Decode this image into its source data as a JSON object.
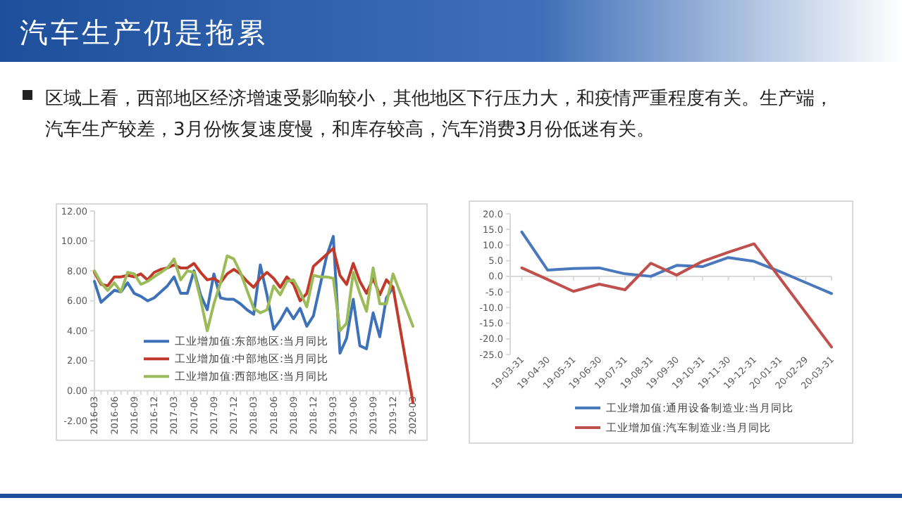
{
  "chart_data": [
    {
      "type": "line",
      "title": "汽车生产仍是拖累",
      "subtitle": "区域上看，西部地区经济增速受影响较小，其他地区下行压力大，和疫情严重程度有关。生产端，汽车生产较差，3月份恢复速度慢，和库存较高，汽车消费3月份低迷有关。",
      "categories": [
        "2016-03",
        null,
        null,
        "2016-06",
        null,
        null,
        "2016-09",
        null,
        null,
        "2016-12",
        null,
        null,
        "2017-03",
        null,
        null,
        "2017-06",
        null,
        null,
        "2017-09",
        null,
        null,
        "2017-12",
        null,
        null,
        "2018-03",
        null,
        null,
        "2018-06",
        null,
        null,
        "2018-09",
        null,
        null,
        "2018-12",
        null,
        null,
        "2019-03",
        null,
        null,
        "2019-06",
        null,
        null,
        "2019-09",
        null,
        null,
        "2019-12",
        null,
        null,
        "2020-03"
      ],
      "series": [
        {
          "name": "工业增加值:东部地区:当月同比",
          "color": "#3d72b8",
          "values": [
            7.3,
            5.9,
            6.3,
            6.7,
            6.6,
            7.2,
            6.5,
            6.3,
            6.0,
            6.2,
            6.6,
            7.0,
            7.6,
            6.5,
            6.5,
            8.0,
            6.4,
            5.4,
            7.8,
            6.2,
            6.1,
            6.1,
            5.8,
            5.4,
            5.1,
            8.4,
            6.4,
            4.1,
            4.7,
            5.5,
            4.8,
            5.5,
            4.3,
            5.0,
            7.0,
            9.0,
            10.3,
            2.5,
            3.5,
            6.1,
            3.0,
            2.8,
            5.2,
            3.6,
            6.2,
            6.9,
            null,
            null,
            null
          ]
        },
        {
          "name": "工业增加值:中部地区:当月同比",
          "color": "#c0392b",
          "values": [
            7.9,
            7.1,
            7.0,
            7.6,
            7.6,
            7.7,
            7.6,
            7.8,
            7.4,
            7.9,
            8.1,
            8.2,
            8.4,
            8.2,
            8.2,
            8.5,
            7.9,
            7.4,
            7.5,
            7.2,
            7.8,
            8.1,
            7.8,
            7.3,
            6.9,
            7.5,
            7.9,
            7.5,
            6.9,
            7.6,
            7.1,
            6.0,
            6.5,
            8.3,
            8.7,
            9.1,
            9.5,
            7.7,
            7.1,
            8.5,
            7.3,
            6.5,
            7.5,
            6.4,
            7.4,
            6.9,
            null,
            null,
            -0.8
          ]
        },
        {
          "name": "工业增加值:西部地区:当月同比",
          "color": "#9bbb59",
          "values": [
            8.0,
            7.2,
            6.7,
            7.2,
            6.6,
            7.9,
            7.8,
            7.1,
            7.3,
            7.6,
            7.9,
            8.2,
            8.8,
            7.4,
            8.0,
            7.9,
            6.1,
            4.0,
            5.8,
            7.2,
            9.0,
            8.8,
            7.9,
            6.7,
            5.5,
            5.2,
            5.4,
            7.0,
            6.4,
            7.3,
            7.4,
            6.6,
            5.6,
            7.7,
            7.6,
            7.6,
            7.5,
            4.0,
            4.5,
            7.9,
            6.5,
            5.3,
            8.2,
            5.8,
            5.8,
            7.8,
            null,
            null,
            4.3
          ]
        }
      ],
      "ylim": [
        -2,
        12
      ],
      "yticks": [
        {
          "value": 12,
          "label": "12.00"
        },
        {
          "value": 10,
          "label": "10.00"
        },
        {
          "value": 8,
          "label": "8.00"
        },
        {
          "value": 6,
          "label": "6.00"
        },
        {
          "value": 4,
          "label": "4.00"
        },
        {
          "value": 2,
          "label": "2.00"
        },
        {
          "value": 0,
          "label": "0.00"
        },
        {
          "value": -2,
          "label": "-2.00"
        }
      ],
      "legend": "bottom left"
    },
    {
      "type": "line",
      "categories": [
        "19-03-31",
        "19-04-30",
        "19-05-31",
        "19-06-30",
        "19-07-31",
        "19-08-31",
        "19-09-30",
        "19-10-31",
        "19-11-30",
        "19-12-31",
        "20-01-31",
        "20-02-29",
        "20-03-31"
      ],
      "series": [
        {
          "name": "工业增加值:通用设备制造业:当月同比",
          "color": "#4a78bd",
          "values": [
            14.2,
            2.0,
            2.5,
            2.7,
            0.8,
            0.0,
            3.5,
            3.1,
            6.0,
            4.8,
            1.5,
            -2.0,
            -5.5
          ]
        },
        {
          "name": "工业增加值:汽车制造业:当月同比",
          "color": "#c0504d",
          "values": [
            2.7,
            -1.0,
            -4.8,
            -2.5,
            -4.3,
            4.2,
            0.4,
            4.8,
            7.7,
            10.4,
            -0.6,
            -11.6,
            -22.6
          ]
        }
      ],
      "ylim": [
        -25,
        20
      ],
      "yticks": [
        {
          "value": 20,
          "label": "20.0"
        },
        {
          "value": 15,
          "label": "15.0"
        },
        {
          "value": 10,
          "label": "10.0"
        },
        {
          "value": 5,
          "label": "5.0"
        },
        {
          "value": 0,
          "label": "0.0"
        },
        {
          "value": -5,
          "label": "-5.0"
        },
        {
          "value": -10,
          "label": "-10.0"
        },
        {
          "value": -15,
          "label": "-15.0"
        },
        {
          "value": -20,
          "label": "-20.0"
        },
        {
          "value": -25,
          "label": "-25.0"
        }
      ],
      "legend": "bottom"
    }
  ]
}
